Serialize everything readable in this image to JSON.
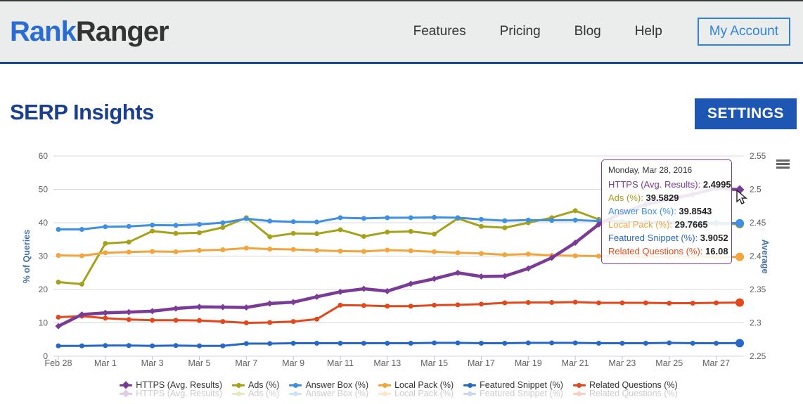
{
  "header": {
    "logo": {
      "part1": "Rank",
      "part2": "Ranger"
    },
    "nav": [
      {
        "label": "Features"
      },
      {
        "label": "Pricing"
      },
      {
        "label": "Blog"
      },
      {
        "label": "Help"
      }
    ],
    "account_button": "My Account"
  },
  "page": {
    "title": "SERP Insights",
    "settings_button": "SETTINGS"
  },
  "chart_data": {
    "type": "line",
    "title": "",
    "categories": [
      "Feb 28",
      "Feb 29",
      "Mar 1",
      "Mar 2",
      "Mar 3",
      "Mar 4",
      "Mar 5",
      "Mar 6",
      "Mar 7",
      "Mar 8",
      "Mar 9",
      "Mar 10",
      "Mar 11",
      "Mar 12",
      "Mar 13",
      "Mar 14",
      "Mar 15",
      "Mar 16",
      "Mar 17",
      "Mar 18",
      "Mar 19",
      "Mar 20",
      "Mar 21",
      "Mar 22",
      "Mar 23",
      "Mar 24",
      "Mar 25",
      "Mar 26",
      "Mar 27",
      "Mar 28"
    ],
    "x_tick_labels": [
      "Feb 28",
      "Mar 1",
      "Mar 3",
      "Mar 5",
      "Mar 7",
      "Mar 9",
      "Mar 11",
      "Mar 13",
      "Mar 15",
      "Mar 17",
      "Mar 19",
      "Mar 21",
      "Mar 23",
      "Mar 25",
      "Mar 27"
    ],
    "left_axis": {
      "label": "% of Queries",
      "min": 0,
      "max": 60,
      "step": 10
    },
    "right_axis": {
      "label": "Average",
      "min": 2.25,
      "max": 2.55,
      "step": 0.05,
      "tick_labels": [
        "2.25",
        "2.3",
        "2.35",
        "2.4",
        "2.45",
        "2.5",
        "2.55"
      ]
    },
    "grid": true,
    "legend_position": "bottom",
    "series": [
      {
        "name": "Ads (%)",
        "color": "#a5a21a",
        "axis": "left",
        "marker": "circle",
        "values": [
          22.2,
          21.6,
          33.8,
          34.2,
          37.5,
          36.8,
          37.0,
          38.6,
          41.5,
          35.8,
          36.8,
          36.7,
          37.9,
          35.9,
          37.2,
          37.4,
          36.6,
          41.3,
          38.9,
          38.5,
          40.0,
          41.5,
          43.6,
          41.0,
          40.3,
          40.0,
          39.8,
          39.7,
          39.6,
          39.58
        ]
      },
      {
        "name": "Answer Box (%)",
        "color": "#3f8fe3",
        "axis": "left",
        "marker": "circle",
        "values": [
          38.0,
          38.0,
          38.8,
          38.9,
          39.3,
          39.2,
          39.5,
          40.0,
          41.2,
          40.5,
          40.3,
          40.2,
          41.5,
          41.3,
          41.5,
          41.5,
          41.6,
          41.5,
          41.0,
          40.6,
          40.8,
          40.7,
          40.8,
          40.5,
          40.3,
          40.2,
          40.1,
          40.0,
          40.0,
          39.85
        ]
      },
      {
        "name": "Local Pack (%)",
        "color": "#f3a43b",
        "axis": "left",
        "marker": "circle",
        "values": [
          30.2,
          30.1,
          31.0,
          31.2,
          31.4,
          31.3,
          31.7,
          31.9,
          32.4,
          32.1,
          32.0,
          31.7,
          31.5,
          31.4,
          31.8,
          31.6,
          31.3,
          31.0,
          30.8,
          30.4,
          30.6,
          30.2,
          30.1,
          30.0,
          29.9,
          29.9,
          29.8,
          29.9,
          29.8,
          29.77
        ]
      },
      {
        "name": "Featured Snippet (%)",
        "color": "#2668c5",
        "axis": "left",
        "marker": "circle",
        "values": [
          3.1,
          3.1,
          3.2,
          3.2,
          3.1,
          3.2,
          3.1,
          3.1,
          3.8,
          3.8,
          3.9,
          3.9,
          3.9,
          3.9,
          3.9,
          3.9,
          4.0,
          4.0,
          3.9,
          3.9,
          4.0,
          4.0,
          4.0,
          3.9,
          3.9,
          3.9,
          4.0,
          3.9,
          3.9,
          3.91
        ]
      },
      {
        "name": "Related Questions (%)",
        "color": "#e1491c",
        "axis": "left",
        "marker": "circle",
        "values": [
          11.7,
          12.0,
          11.4,
          11.0,
          10.8,
          10.8,
          10.7,
          10.4,
          10.0,
          10.1,
          10.4,
          11.1,
          15.3,
          15.2,
          15.0,
          15.0,
          15.3,
          15.4,
          15.6,
          16.0,
          16.1,
          16.1,
          16.2,
          16.0,
          16.0,
          16.0,
          15.9,
          15.9,
          16.0,
          16.08
        ]
      },
      {
        "name": "HTTPS (Avg. Results)",
        "color": "#7a3b96",
        "axis": "right",
        "marker": "diamond",
        "values": [
          2.295,
          2.3125,
          2.315,
          2.316,
          2.3175,
          2.3215,
          2.324,
          2.3235,
          2.323,
          2.329,
          2.331,
          2.339,
          2.3465,
          2.351,
          2.3475,
          2.3585,
          2.366,
          2.375,
          2.3695,
          2.37,
          2.3815,
          2.3975,
          2.42,
          2.4475,
          2.465,
          2.4775,
          2.485,
          2.4925,
          2.5015,
          2.4995
        ]
      }
    ],
    "legend_order": [
      "HTTPS (Avg. Results)",
      "Ads (%)",
      "Answer Box (%)",
      "Local Pack (%)",
      "Featured Snippet (%)",
      "Related Questions (%)"
    ]
  },
  "tooltip": {
    "date": "Monday, Mar 28, 2016",
    "rows": [
      {
        "label": "HTTPS (Avg. Results)",
        "value": "2.4995",
        "color": "#7a3b96"
      },
      {
        "label": "Ads (%)",
        "value": "39.5829",
        "color": "#a5a21a"
      },
      {
        "label": "Answer Box (%)",
        "value": "39.8543",
        "color": "#3f8fe3"
      },
      {
        "label": "Local Pack (%)",
        "value": "29.7665",
        "color": "#f2a33c"
      },
      {
        "label": "Featured Snippet (%)",
        "value": "3.9052",
        "color": "#2668c5"
      },
      {
        "label": "Related Questions (%)",
        "value": "16.08",
        "color": "#e1491c"
      }
    ]
  }
}
